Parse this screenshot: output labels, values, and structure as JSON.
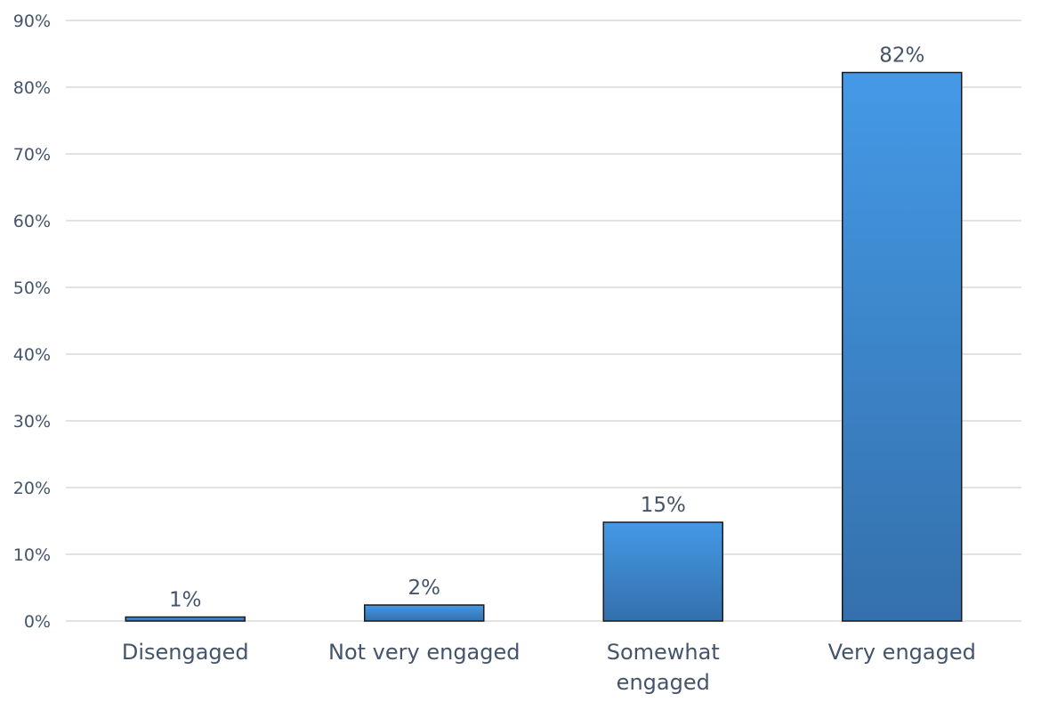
{
  "chart_data": {
    "type": "bar",
    "title": "",
    "xlabel": "",
    "ylabel": "",
    "categories": [
      "Disengaged",
      "Not very engaged",
      "Somewhat engaged",
      "Very engaged"
    ],
    "category_label_lines": [
      [
        "Disengaged"
      ],
      [
        "Not very engaged"
      ],
      [
        "Somewhat",
        "engaged"
      ],
      [
        "Very engaged"
      ]
    ],
    "values": [
      0.6,
      2.4,
      14.8,
      82.2
    ],
    "data_labels": [
      "1%",
      "2%",
      "15%",
      "82%"
    ],
    "ylim": [
      0,
      90
    ],
    "yticks": [
      0,
      10,
      20,
      30,
      40,
      50,
      60,
      70,
      80,
      90
    ],
    "ytick_labels": [
      "0%",
      "10%",
      "20%",
      "30%",
      "40%",
      "50%",
      "60%",
      "70%",
      "80%",
      "90%"
    ],
    "grid": true,
    "legend": "none",
    "colors": {
      "bar_top": "#4499e6",
      "bar_bottom": "#3470ac",
      "bar_outline": "#1a1a1a",
      "gridline": "#d9d9d9",
      "text": "#44546a"
    }
  }
}
